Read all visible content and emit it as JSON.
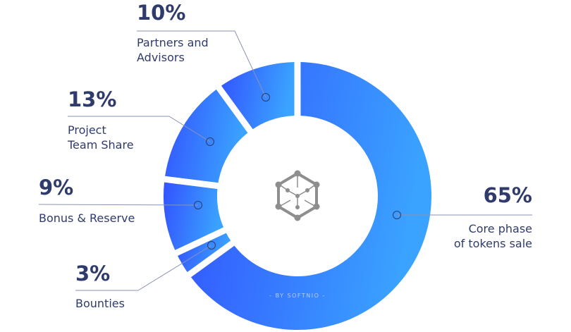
{
  "chart_data": {
    "type": "pie",
    "variant": "donut",
    "categories": [
      "Core phase of tokens sale",
      "Bounties",
      "Bonus & Reserve",
      "Project Team Share",
      "Partners and Advisors"
    ],
    "values": [
      65,
      3,
      9,
      13,
      10
    ],
    "data_labels": [
      "65%",
      "3%",
      "9%",
      "13%",
      "10%"
    ],
    "label_lines": [
      [
        "Core phase",
        "of tokens sale"
      ],
      [
        "Bounties"
      ],
      [
        "Bonus & Reserve"
      ],
      [
        "Project",
        "Team Share"
      ],
      [
        "Partners and",
        "Advisors"
      ]
    ],
    "gradient_colors": [
      "#3352ff",
      "#3aa3ff"
    ],
    "text_color": "#2f3b6b",
    "watermark": "- BY SOFTNIO -"
  }
}
